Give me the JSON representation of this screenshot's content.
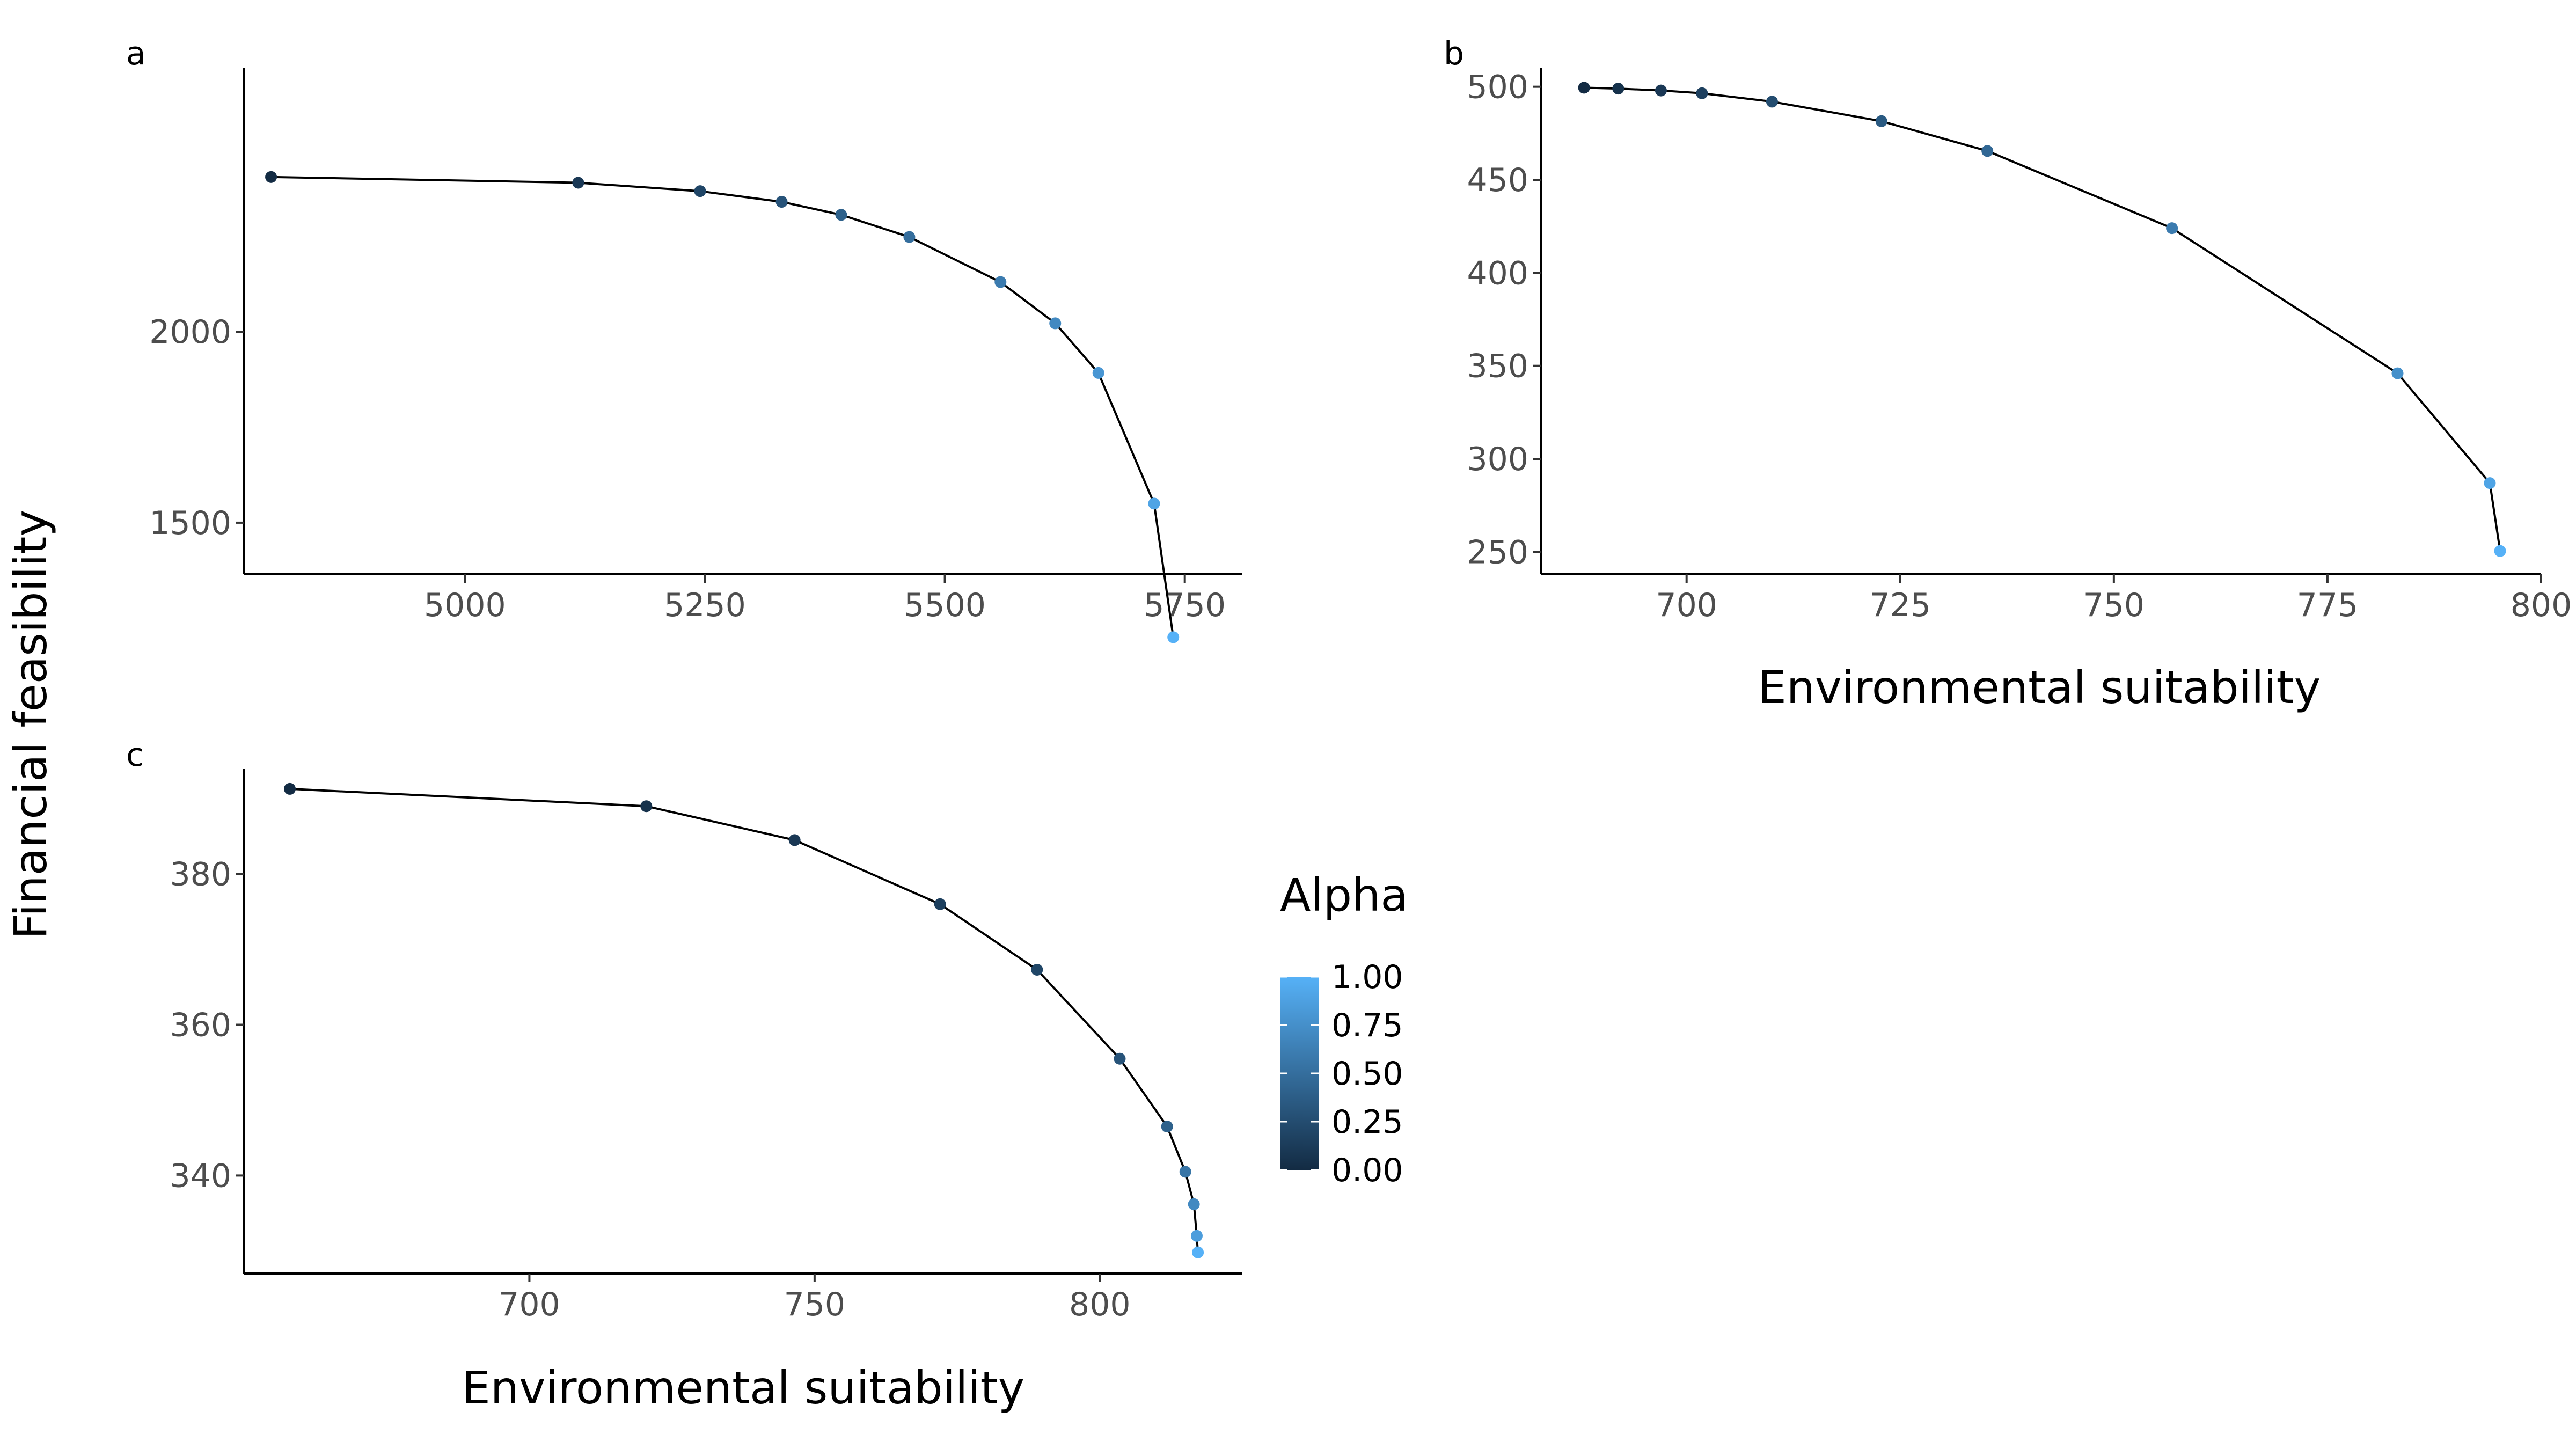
{
  "figure": {
    "ylabel": "Financial feasibility",
    "xlabel": "Environmental suitability",
    "legend": {
      "title": "Alpha",
      "min": 0.0,
      "max": 1.0,
      "labels": [
        "1.00",
        "0.75",
        "0.50",
        "0.25",
        "0.00"
      ],
      "values": [
        1.0,
        0.75,
        0.5,
        0.25,
        0.0
      ],
      "color_low": "#132B43",
      "color_high": "#56B1F7"
    }
  },
  "chart_data": [
    {
      "type": "line",
      "panel": "a",
      "tag": "a",
      "xlim": [
        4770,
        5810
      ],
      "ylim": [
        1365,
        2690
      ],
      "xticks": [
        5000,
        5250,
        5500,
        5750
      ],
      "xtick_labels": [
        "5000",
        "5250",
        "5500",
        "5750"
      ],
      "yticks": [
        1500,
        2000
      ],
      "ytick_labels": [
        "1500",
        "2000"
      ],
      "points": [
        {
          "x": 4798,
          "y": 2405,
          "alpha": 0.0
        },
        {
          "x": 5118,
          "y": 2390,
          "alpha": 0.1
        },
        {
          "x": 5245,
          "y": 2368,
          "alpha": 0.2
        },
        {
          "x": 5330,
          "y": 2340,
          "alpha": 0.3
        },
        {
          "x": 5392,
          "y": 2306,
          "alpha": 0.4
        },
        {
          "x": 5463,
          "y": 2248,
          "alpha": 0.5
        },
        {
          "x": 5558,
          "y": 2130,
          "alpha": 0.6
        },
        {
          "x": 5615,
          "y": 2022,
          "alpha": 0.7
        },
        {
          "x": 5660,
          "y": 1892,
          "alpha": 0.8
        },
        {
          "x": 5718,
          "y": 1550,
          "alpha": 0.9
        },
        {
          "x": 5738,
          "y": 1200,
          "alpha": 1.0
        }
      ]
    },
    {
      "type": "line",
      "panel": "b",
      "tag": "b",
      "xlim": [
        683,
        800
      ],
      "ylim": [
        238,
        510
      ],
      "xticks": [
        700,
        725,
        750,
        775,
        800
      ],
      "xtick_labels": [
        "700",
        "725",
        "750",
        "775",
        "800"
      ],
      "yticks": [
        250,
        300,
        350,
        400,
        450,
        500
      ],
      "ytick_labels": [
        "250",
        "300",
        "350",
        "400",
        "450",
        "500"
      ],
      "points": [
        {
          "x": 688.0,
          "y": 499.5,
          "alpha": 0.0
        },
        {
          "x": 692.0,
          "y": 499.0,
          "alpha": 0.05
        },
        {
          "x": 697.0,
          "y": 498.0,
          "alpha": 0.1
        },
        {
          "x": 701.8,
          "y": 496.5,
          "alpha": 0.15
        },
        {
          "x": 710.0,
          "y": 492.0,
          "alpha": 0.25
        },
        {
          "x": 722.8,
          "y": 481.5,
          "alpha": 0.35
        },
        {
          "x": 735.2,
          "y": 465.5,
          "alpha": 0.45
        },
        {
          "x": 756.8,
          "y": 424.0,
          "alpha": 0.6
        },
        {
          "x": 783.2,
          "y": 346.0,
          "alpha": 0.75
        },
        {
          "x": 794.0,
          "y": 287.0,
          "alpha": 0.9
        },
        {
          "x": 795.2,
          "y": 250.5,
          "alpha": 1.0
        }
      ]
    },
    {
      "type": "line",
      "panel": "c",
      "tag": "c",
      "xlim": [
        650,
        825
      ],
      "ylim": [
        327,
        394
      ],
      "xticks": [
        700,
        750,
        800
      ],
      "xtick_labels": [
        "700",
        "750",
        "800"
      ],
      "yticks": [
        340,
        360,
        380
      ],
      "ytick_labels": [
        "340",
        "360",
        "380"
      ],
      "points": [
        {
          "x": 658.0,
          "y": 391.3,
          "alpha": 0.0
        },
        {
          "x": 720.5,
          "y": 389.0,
          "alpha": 0.05
        },
        {
          "x": 746.5,
          "y": 384.5,
          "alpha": 0.1
        },
        {
          "x": 772.0,
          "y": 376.0,
          "alpha": 0.15
        },
        {
          "x": 789.0,
          "y": 367.3,
          "alpha": 0.2
        },
        {
          "x": 803.5,
          "y": 355.5,
          "alpha": 0.3
        },
        {
          "x": 811.8,
          "y": 346.5,
          "alpha": 0.4
        },
        {
          "x": 815.0,
          "y": 340.5,
          "alpha": 0.55
        },
        {
          "x": 816.5,
          "y": 336.2,
          "alpha": 0.7
        },
        {
          "x": 817.0,
          "y": 332.0,
          "alpha": 0.85
        },
        {
          "x": 817.2,
          "y": 329.8,
          "alpha": 1.0
        }
      ]
    }
  ]
}
